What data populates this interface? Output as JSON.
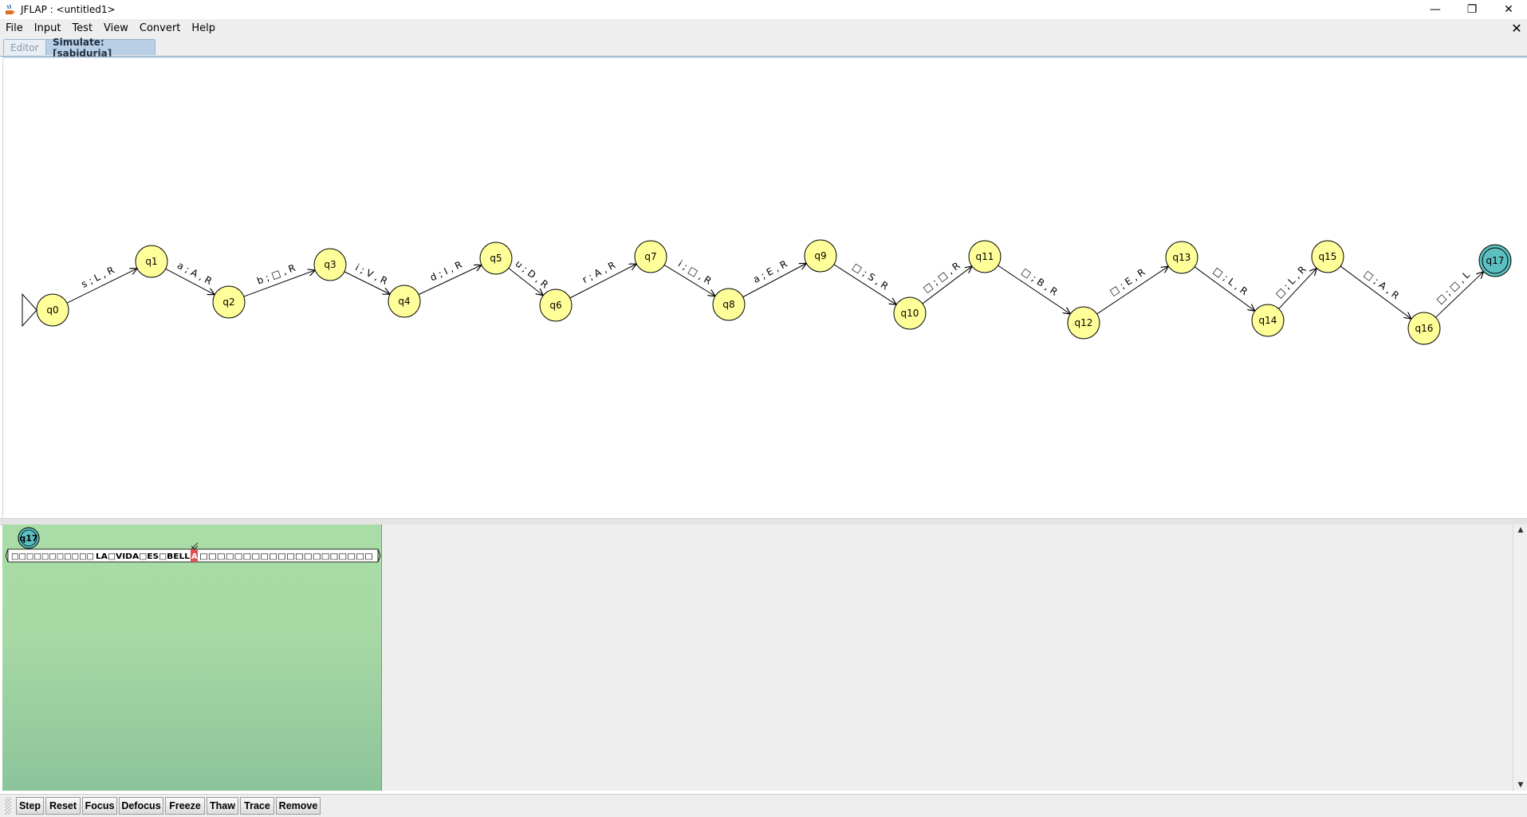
{
  "window": {
    "title": "JFLAP : <untitled1>",
    "controls": {
      "minimize": "—",
      "maximize": "❐",
      "close": "✕"
    }
  },
  "menu": {
    "items": [
      "File",
      "Input",
      "Test",
      "View",
      "Convert",
      "Help"
    ]
  },
  "doc_close": "✕",
  "tabs": {
    "editor": "Editor",
    "simulate": "Simulate: [sabiduria]"
  },
  "colors": {
    "state_fill": "#ffff99",
    "accept_fill": "#5cc0c0",
    "config_panel": "#a8d9a5",
    "head_cell": "#e05050"
  },
  "states": [
    {
      "id": "q0",
      "label": "q0"
    },
    {
      "id": "q1",
      "label": "q1"
    },
    {
      "id": "q2",
      "label": "q2"
    },
    {
      "id": "q3",
      "label": "q3"
    },
    {
      "id": "q4",
      "label": "q4"
    },
    {
      "id": "q5",
      "label": "q5"
    },
    {
      "id": "q6",
      "label": "q6"
    },
    {
      "id": "q7",
      "label": "q7"
    },
    {
      "id": "q8",
      "label": "q8"
    },
    {
      "id": "q9",
      "label": "q9"
    },
    {
      "id": "q10",
      "label": "q10"
    },
    {
      "id": "q11",
      "label": "q11"
    },
    {
      "id": "q12",
      "label": "q12"
    },
    {
      "id": "q13",
      "label": "q13"
    },
    {
      "id": "q14",
      "label": "q14"
    },
    {
      "id": "q15",
      "label": "q15"
    },
    {
      "id": "q16",
      "label": "q16"
    },
    {
      "id": "q17",
      "label": "q17"
    }
  ],
  "initial_state": "q0",
  "current_state": "q17",
  "transitions": [
    "s ; L , R",
    "a ; A , R",
    "b ; □ , R",
    "i ; V , R",
    "d ; I , R",
    "u ; D , R",
    "r ; A , R",
    "i ; □ , R",
    "a ; E , R",
    "□ ; S , R",
    "□ ; □ , R",
    "□ ; B , R",
    "□ ; E , R",
    "□ ; L , R",
    "□ ; L , R",
    "□ ; A , R",
    "□ ; □ , L"
  ],
  "configuration": {
    "state_label": "q17",
    "tape_left": "□□□□□□□□□□□",
    "tape_mid": "LA□VIDA□ES□BELL",
    "tape_head": "A",
    "tape_right": "□□□□□□□□□□□□□□□□□□□□"
  },
  "toolbar": [
    "Step",
    "Reset",
    "Focus",
    "Defocus",
    "Freeze",
    "Thaw",
    "Trace",
    "Remove"
  ]
}
